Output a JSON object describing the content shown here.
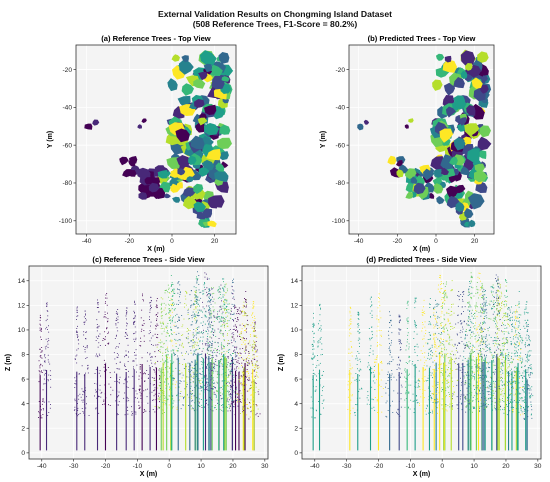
{
  "figure": {
    "title_line1": "External Validation Results on Chongming Island Dataset",
    "title_line2": "(508 Reference Trees, F1-Score = 80.2%)"
  },
  "colors": {
    "panel_bg": "#f4f4f4",
    "axes_frame": "#333333",
    "grid": "#ffffff",
    "viridis": [
      "#440154",
      "#482878",
      "#3e4989",
      "#31688e",
      "#26828e",
      "#1f9e89",
      "#35b779",
      "#6ece58",
      "#b5de2b",
      "#fde725"
    ]
  },
  "chart_data": [
    {
      "type": "scatter",
      "title": "(a) Reference Trees - Top View",
      "xlabel": "X (m)",
      "ylabel": "Y (m)",
      "xlim": [
        -45,
        30
      ],
      "ylim": [
        -107,
        -7
      ],
      "xticks": [
        -40,
        -20,
        0,
        20
      ],
      "yticks": [
        -100,
        -80,
        -60,
        -40,
        -20
      ],
      "grid": true,
      "coloring": "reference-tree-id"
    },
    {
      "type": "scatter",
      "title": "(b) Predicted Trees - Top View",
      "xlabel": "X (m)",
      "ylabel": "Y (m)",
      "xlim": [
        -45,
        30
      ],
      "ylim": [
        -107,
        -7
      ],
      "xticks": [
        -40,
        -20,
        0,
        20
      ],
      "yticks": [
        -100,
        -80,
        -60,
        -40,
        -20
      ],
      "grid": true,
      "coloring": "predicted-tree-id"
    },
    {
      "type": "scatter",
      "title": "(c) Reference Trees - Side View",
      "xlabel": "X (m)",
      "ylabel": "Z (m)",
      "xlim": [
        -44,
        31
      ],
      "ylim": [
        -0.5,
        15.2
      ],
      "xticks": [
        -40,
        -30,
        -20,
        -10,
        0,
        10,
        20,
        30
      ],
      "yticks": [
        0,
        2,
        4,
        6,
        8,
        10,
        12,
        14
      ],
      "grid": true,
      "coloring": "reference-tree-id"
    },
    {
      "type": "scatter",
      "title": "(d) Predicted Trees - Side View",
      "xlabel": "X (m)",
      "ylabel": "Z (m)",
      "xlim": [
        -44,
        31
      ],
      "ylim": [
        -0.5,
        15.2
      ],
      "xticks": [
        -40,
        -30,
        -20,
        -10,
        0,
        10,
        20,
        30
      ],
      "yticks": [
        0,
        2,
        4,
        6,
        8,
        10,
        12,
        14
      ],
      "grid": true,
      "coloring": "predicted-tree-id"
    }
  ]
}
